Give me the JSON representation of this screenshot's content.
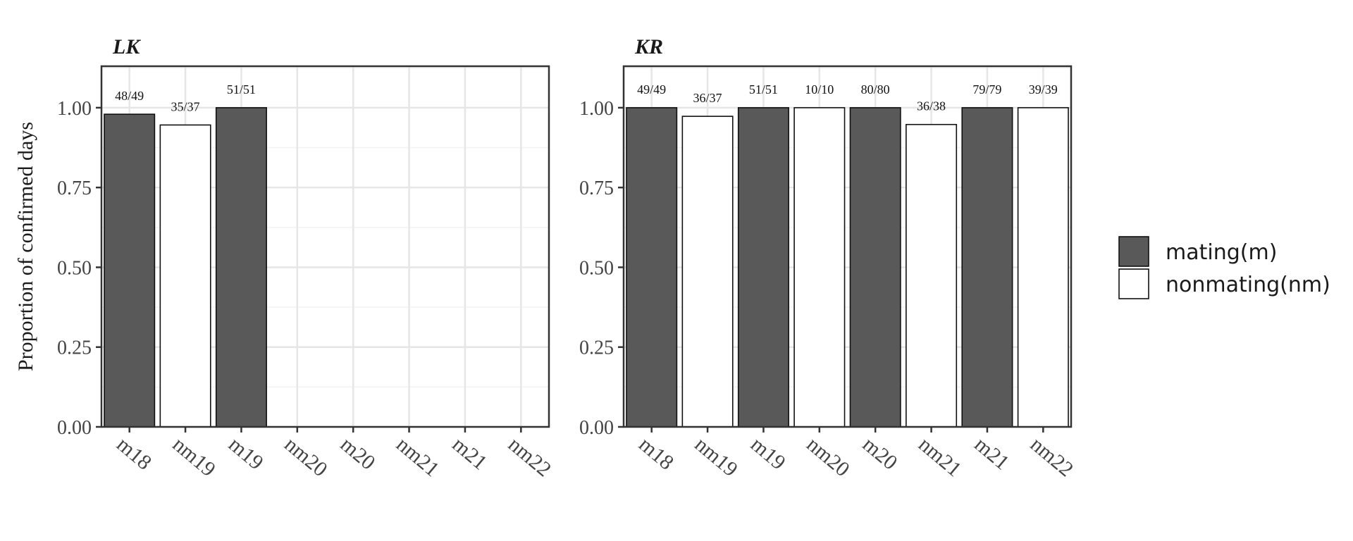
{
  "chart_data": {
    "type": "bar",
    "ylabel": "Proportion of confirmed days",
    "ylim": [
      0,
      1.13
    ],
    "yticks": [
      "0.00",
      "0.25",
      "0.50",
      "0.75",
      "1.00"
    ],
    "ytick_values": [
      0,
      0.25,
      0.5,
      0.75,
      1.0
    ],
    "grid": true,
    "legend_position": "right",
    "categories": [
      "m18",
      "nm19",
      "m19",
      "nm20",
      "m20",
      "nm21",
      "m21",
      "nm22"
    ],
    "legend": [
      {
        "key": "mating",
        "label": "mating(m)",
        "color": "#595959"
      },
      {
        "key": "nonmating",
        "label": "nonmating(nm)",
        "color": "#ffffff"
      }
    ],
    "panels": [
      {
        "title": "LK",
        "bars": [
          {
            "category": "m18",
            "value": 0.9796,
            "label": "48/49",
            "group": "mating"
          },
          {
            "category": "nm19",
            "value": 0.9459,
            "label": "35/37",
            "group": "nonmating"
          },
          {
            "category": "m19",
            "value": 1.0,
            "label": "51/51",
            "group": "mating"
          }
        ]
      },
      {
        "title": "KR",
        "bars": [
          {
            "category": "m18",
            "value": 1.0,
            "label": "49/49",
            "group": "mating"
          },
          {
            "category": "nm19",
            "value": 0.973,
            "label": "36/37",
            "group": "nonmating"
          },
          {
            "category": "m19",
            "value": 1.0,
            "label": "51/51",
            "group": "mating"
          },
          {
            "category": "nm20",
            "value": 1.0,
            "label": "10/10",
            "group": "nonmating"
          },
          {
            "category": "m20",
            "value": 1.0,
            "label": "80/80",
            "group": "mating"
          },
          {
            "category": "nm21",
            "value": 0.9474,
            "label": "36/38",
            "group": "nonmating"
          },
          {
            "category": "m21",
            "value": 1.0,
            "label": "79/79",
            "group": "mating"
          },
          {
            "category": "nm22",
            "value": 1.0,
            "label": "39/39",
            "group": "nonmating"
          }
        ]
      }
    ]
  }
}
